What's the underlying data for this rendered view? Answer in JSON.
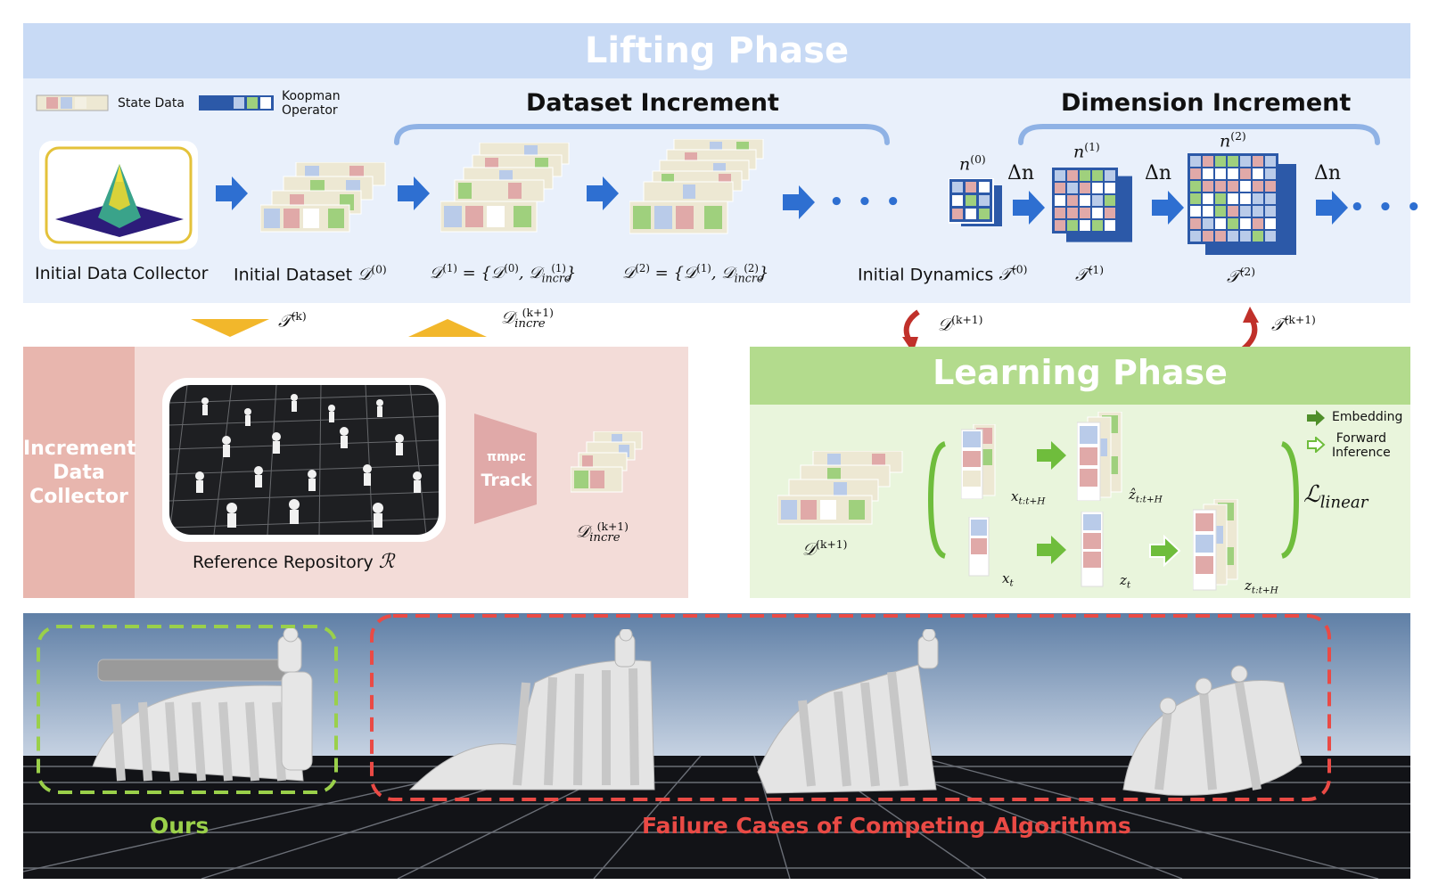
{
  "lifting_phase": {
    "title": "Lifting Phase",
    "legend": {
      "state_data": "State Data",
      "koopman_line1": "Koopman",
      "koopman_line2": "Operator"
    },
    "dataset_increment": "Dataset Increment",
    "dimension_increment": "Dimension Increment",
    "initial_data_collector": "Initial Data Collector",
    "initial_dataset": "Initial Dataset",
    "initial_dynamics": "Initial Dynamics",
    "delta_n": "Δn",
    "ellipsis": "• • •"
  },
  "handoff": {
    "t_k": "T(k)",
    "d_incre_k1": "D(k+1) incre",
    "d_k1": "D(k+1)",
    "t_k1": "T(k+1)"
  },
  "increment_collector": {
    "side_label_line1": "Increment",
    "side_label_line2": "Data",
    "side_label_line3": "Collector",
    "reference_repository": "Reference Repository",
    "policy_line1": "πmpc",
    "policy_line2": "Track"
  },
  "learning_phase": {
    "title": "Learning Phase",
    "legend_embedding": "Embedding",
    "legend_forward_line1": "Forward",
    "legend_forward_line2": "Inference",
    "loss": "L linear"
  },
  "scene": {
    "ours_label": "Ours",
    "failure_label": "Failure Cases of Competing Algorithms"
  },
  "colors": {
    "lift_bg": "#e9f0fb",
    "lift_title": "#c8daf5",
    "increment_bg": "#f3dcd8",
    "increment_side": "#e8b6ae",
    "learning_bg": "#e9f5dc",
    "learning_title": "#b3db8d",
    "arrow_blue": "#2e6fd1",
    "arrow_green": "#6fbd3c",
    "arrow_red": "#c0302a",
    "tri_yellow": "#f2b72b",
    "ours_green": "#9ad04a",
    "fail_red": "#ea4a45"
  }
}
